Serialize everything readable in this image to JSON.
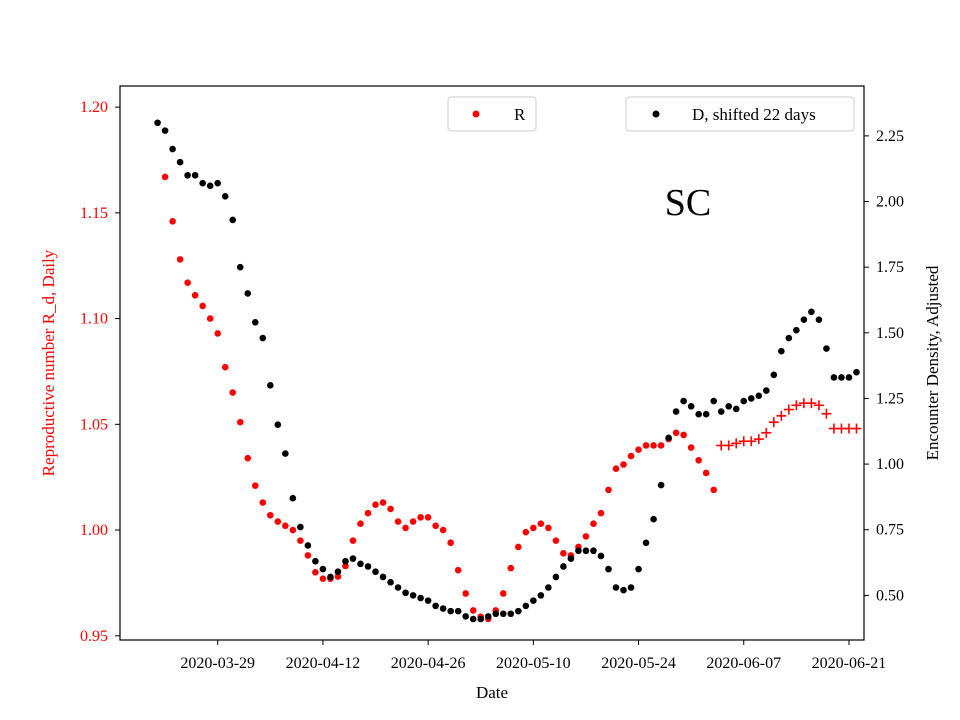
{
  "colors": {
    "R": "#ff0000",
    "D": "#000000",
    "axis": "#000000",
    "legend_border": "#cccccc"
  },
  "chart_data": {
    "type": "scatter",
    "title": "",
    "annotation": "SC",
    "xlabel": "Date",
    "ylabel_left": "Reproductive number R_d, Daily",
    "ylabel_right": "Encounter Density, Adjusted",
    "grid": false,
    "x_axis": {
      "type": "date",
      "range": [
        "2020-03-16",
        "2020-06-23"
      ],
      "ticks": [
        "2020-03-29",
        "2020-04-12",
        "2020-04-26",
        "2020-05-10",
        "2020-05-24",
        "2020-06-07",
        "2020-06-21"
      ]
    },
    "y_left": {
      "range": [
        0.948,
        1.21
      ],
      "ticks": [
        0.95,
        1.0,
        1.05,
        1.1,
        1.15,
        1.2
      ],
      "tick_labels": [
        "0.95",
        "1.00",
        "1.05",
        "1.10",
        "1.15",
        "1.20"
      ]
    },
    "y_right": {
      "range": [
        0.33,
        2.44
      ],
      "ticks": [
        0.5,
        0.75,
        1.0,
        1.25,
        1.5,
        1.75,
        2.0,
        2.25
      ],
      "tick_labels": [
        "0.50",
        "0.75",
        "1.00",
        "1.25",
        "1.50",
        "1.75",
        "2.00",
        "2.25"
      ]
    },
    "legends": [
      {
        "label": "R",
        "series": "R",
        "position": "top-center"
      },
      {
        "label": "D, shifted 22 days",
        "series": "D",
        "position": "top-right"
      }
    ],
    "series": [
      {
        "name": "R",
        "axis": "left",
        "color": "#ff0000",
        "marker": "dot",
        "start": "2020-03-22",
        "values": [
          1.167,
          1.146,
          1.128,
          1.117,
          1.111,
          1.106,
          1.1,
          1.093,
          1.077,
          1.065,
          1.051,
          1.034,
          1.021,
          1.013,
          1.007,
          1.004,
          1.002,
          1.0,
          0.995,
          0.988,
          0.98,
          0.977,
          0.977,
          0.978,
          0.983,
          0.995,
          1.003,
          1.008,
          1.012,
          1.013,
          1.01,
          1.004,
          1.001,
          1.004,
          1.006,
          1.006,
          1.002,
          1.0,
          0.994,
          0.981,
          0.97,
          0.962,
          0.959,
          0.958,
          0.962,
          0.97,
          0.982,
          0.992,
          0.999,
          1.001,
          1.003,
          1.001,
          0.995,
          0.989,
          0.988,
          0.992,
          0.997,
          1.003,
          1.008,
          1.019,
          1.029,
          1.031,
          1.035,
          1.038,
          1.04,
          1.04,
          1.04,
          1.043,
          1.046,
          1.045,
          1.039,
          1.033,
          1.027,
          1.019
        ]
      },
      {
        "name": "R",
        "axis": "left",
        "color": "#ff0000",
        "marker": "plus",
        "start": "2020-06-04",
        "values": [
          1.04,
          1.04,
          1.041,
          1.042,
          1.042,
          1.043,
          1.046,
          1.051,
          1.054,
          1.057,
          1.059,
          1.06,
          1.06,
          1.059,
          1.055,
          1.048,
          1.048,
          1.048,
          1.048
        ]
      },
      {
        "name": "D, shifted 22 days",
        "axis": "right",
        "color": "#000000",
        "marker": "dot",
        "start": "2020-03-21",
        "values": [
          2.3,
          2.27,
          2.2,
          2.15,
          2.1,
          2.1,
          2.07,
          2.06,
          2.07,
          2.02,
          1.93,
          1.75,
          1.65,
          1.54,
          1.48,
          1.3,
          1.15,
          1.04,
          0.87,
          0.76,
          0.69,
          0.63,
          0.6,
          0.57,
          0.59,
          0.63,
          0.64,
          0.62,
          0.61,
          0.59,
          0.57,
          0.55,
          0.53,
          0.51,
          0.5,
          0.49,
          0.48,
          0.46,
          0.45,
          0.44,
          0.44,
          0.42,
          0.41,
          0.41,
          0.42,
          0.43,
          0.43,
          0.43,
          0.44,
          0.46,
          0.48,
          0.5,
          0.53,
          0.57,
          0.61,
          0.64,
          0.67,
          0.67,
          0.67,
          0.65,
          0.6,
          0.53,
          0.52,
          0.53,
          0.6,
          0.7,
          0.79,
          0.92,
          1.1,
          1.2,
          1.24,
          1.22,
          1.19,
          1.19,
          1.24,
          1.2,
          1.22,
          1.21,
          1.24,
          1.25,
          1.26,
          1.28,
          1.34,
          1.43,
          1.48,
          1.51,
          1.55,
          1.58,
          1.55,
          1.44,
          1.33,
          1.33,
          1.33,
          1.35
        ]
      }
    ]
  }
}
